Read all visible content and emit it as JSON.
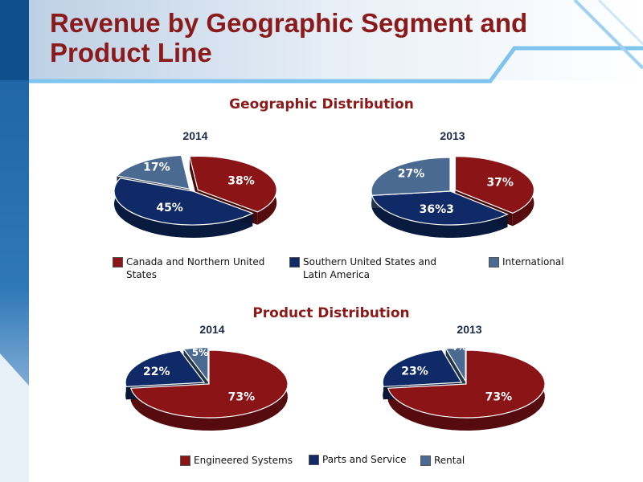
{
  "slide": {
    "title": "Revenue by Geographic Segment and Product Line",
    "colors": {
      "title": "#8b1a1a",
      "accent_blue": "#1b5e9e",
      "light_blue": "#7fc4ee"
    }
  },
  "sections": {
    "geographic": {
      "title": "Geographic Distribution"
    },
    "product": {
      "title": "Product Distribution"
    }
  },
  "chart_data": [
    {
      "type": "pie",
      "title": "2014",
      "group": "geographic",
      "categories": [
        "Canada and Northern United States",
        "Southern United States and Latin America",
        "International"
      ],
      "values": [
        38,
        45,
        17
      ],
      "labels": [
        "38%",
        "45%",
        "17%"
      ],
      "colors": [
        "#8b1416",
        "#0f2a66",
        "#4a6a92"
      ]
    },
    {
      "type": "pie",
      "title": "2013",
      "group": "geographic",
      "categories": [
        "Canada and Northern United States",
        "Southern United States and Latin America",
        "International"
      ],
      "values": [
        37,
        36,
        27
      ],
      "labels": [
        "37%",
        "36%3",
        "27%"
      ],
      "colors": [
        "#8b1416",
        "#0f2a66",
        "#4a6a92"
      ]
    },
    {
      "type": "pie",
      "title": "2014",
      "group": "product",
      "categories": [
        "Engineered Systems",
        "Parts and Service",
        "Rental"
      ],
      "values": [
        73,
        22,
        5
      ],
      "labels": [
        "73%",
        "22%",
        "5%"
      ],
      "colors": [
        "#8b1416",
        "#0f2a66",
        "#4a6a92"
      ]
    },
    {
      "type": "pie",
      "title": "2013",
      "group": "product",
      "categories": [
        "Engineered Systems",
        "Parts and Service",
        "Rental"
      ],
      "values": [
        73,
        23,
        4
      ],
      "labels": [
        "73%",
        "23%",
        "4%"
      ],
      "colors": [
        "#8b1416",
        "#0f2a66",
        "#4a6a92"
      ]
    }
  ],
  "legends": {
    "geographic": [
      {
        "label": "Canada and Northern United States",
        "color": "#8b1416"
      },
      {
        "label": "Southern United States and Latin America",
        "color": "#0f2a66"
      },
      {
        "label": "International",
        "color": "#4a6a92"
      }
    ],
    "product": [
      {
        "label": "Engineered Systems",
        "color": "#8b1416"
      },
      {
        "label": "Parts and Service",
        "color": "#0f2a66"
      },
      {
        "label": "Rental",
        "color": "#4a6a92"
      }
    ]
  }
}
